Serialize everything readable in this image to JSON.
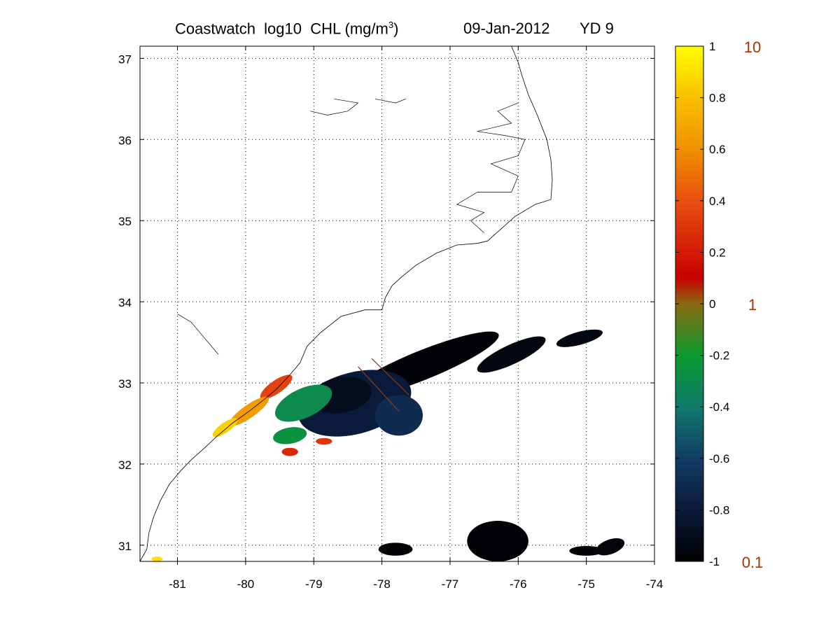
{
  "title": {
    "main": "Coastwatch  log10  CHL (mg/m",
    "superscript": "3",
    "close_paren": ")",
    "date": "09-Jan-2012",
    "yearday": "YD 9"
  },
  "chart_data": {
    "type": "heatmap",
    "title": "Coastwatch log10 CHL (mg/m3)  09-Jan-2012  YD 9",
    "xlim": [
      -81.55,
      -74
    ],
    "ylim": [
      30.8,
      37.15
    ],
    "x_ticks": [
      -81,
      -80,
      -79,
      -78,
      -77,
      -76,
      -75,
      -74
    ],
    "x_tick_labels": [
      "-81",
      "-80",
      "-79",
      "-78",
      "-77",
      "-76",
      "-75",
      "-74"
    ],
    "y_ticks": [
      31,
      32,
      33,
      34,
      35,
      36,
      37
    ],
    "y_tick_labels": [
      "31",
      "32",
      "33",
      "34",
      "35",
      "36",
      "37"
    ],
    "grid": true,
    "colorbar": {
      "clim": [
        -1,
        1
      ],
      "ticks": [
        1,
        0.8,
        0.6,
        0.4,
        0.2,
        0,
        -0.2,
        -0.4,
        -0.6,
        -0.8,
        -1
      ],
      "tick_labels": [
        "1",
        "0.8",
        "0.6",
        "0.4",
        "0.2",
        "0",
        "-0.2",
        "-0.4",
        "-0.6",
        "-0.8",
        "-1"
      ],
      "linear_labels": [
        {
          "value": 1,
          "label": "10"
        },
        {
          "value": 0,
          "label": "1"
        },
        {
          "value": -1,
          "label": "0.1"
        }
      ],
      "colormap": [
        {
          "v": -1.0,
          "color": "#000000"
        },
        {
          "v": -0.8,
          "color": "#0a1a3a"
        },
        {
          "v": -0.6,
          "color": "#123c66"
        },
        {
          "v": -0.4,
          "color": "#0f7a6a"
        },
        {
          "v": -0.2,
          "color": "#0a9a30"
        },
        {
          "v": 0.0,
          "color": "#8a6a10"
        },
        {
          "v": 0.1,
          "color": "#c80000"
        },
        {
          "v": 0.4,
          "color": "#e85010"
        },
        {
          "v": 0.6,
          "color": "#f09000"
        },
        {
          "v": 0.8,
          "color": "#f8c000"
        },
        {
          "v": 1.0,
          "color": "#ffff00"
        }
      ]
    },
    "chl_patches": [
      {
        "lon": -77.4,
        "lat": 33.22,
        "rx": 1.2,
        "ry": 0.18,
        "angle": 22,
        "value": -0.98
      },
      {
        "lon": -76.1,
        "lat": 33.35,
        "rx": 0.55,
        "ry": 0.12,
        "angle": 25,
        "value": -0.95
      },
      {
        "lon": -75.1,
        "lat": 33.55,
        "rx": 0.35,
        "ry": 0.08,
        "angle": 15,
        "value": -0.95
      },
      {
        "lon": -78.4,
        "lat": 32.75,
        "rx": 0.85,
        "ry": 0.38,
        "angle": 15,
        "value": -0.8
      },
      {
        "lon": -78.6,
        "lat": 32.85,
        "rx": 0.45,
        "ry": 0.22,
        "angle": 10,
        "value": -0.9
      },
      {
        "lon": -77.75,
        "lat": 32.6,
        "rx": 0.35,
        "ry": 0.25,
        "angle": 0,
        "value": -0.7
      },
      {
        "lon": -79.15,
        "lat": 32.75,
        "rx": 0.45,
        "ry": 0.18,
        "angle": 25,
        "value": -0.3
      },
      {
        "lon": -79.35,
        "lat": 32.35,
        "rx": 0.25,
        "ry": 0.1,
        "angle": 10,
        "value": -0.25
      },
      {
        "lon": -79.55,
        "lat": 32.95,
        "rx": 0.28,
        "ry": 0.08,
        "angle": 35,
        "value": 0.35
      },
      {
        "lon": -79.95,
        "lat": 32.65,
        "rx": 0.35,
        "ry": 0.08,
        "angle": 35,
        "value": 0.65
      },
      {
        "lon": -80.3,
        "lat": 32.45,
        "rx": 0.22,
        "ry": 0.06,
        "angle": 35,
        "value": 0.85
      },
      {
        "lon": -79.35,
        "lat": 32.15,
        "rx": 0.12,
        "ry": 0.05,
        "angle": 0,
        "value": 0.25
      },
      {
        "lon": -78.85,
        "lat": 32.28,
        "rx": 0.12,
        "ry": 0.04,
        "angle": 0,
        "value": 0.3
      },
      {
        "lon": -76.3,
        "lat": 31.05,
        "rx": 0.45,
        "ry": 0.25,
        "angle": 0,
        "value": -0.98
      },
      {
        "lon": -75.0,
        "lat": 30.93,
        "rx": 0.25,
        "ry": 0.06,
        "angle": 0,
        "value": -0.98
      },
      {
        "lon": -74.65,
        "lat": 30.98,
        "rx": 0.22,
        "ry": 0.09,
        "angle": 20,
        "value": -0.97
      },
      {
        "lon": -77.8,
        "lat": 30.95,
        "rx": 0.25,
        "ry": 0.08,
        "angle": 0,
        "value": -0.98
      },
      {
        "lon": -81.3,
        "lat": 30.83,
        "rx": 0.08,
        "ry": 0.03,
        "angle": 0,
        "value": 0.9
      }
    ],
    "coastline": [
      [
        -81.55,
        30.8
      ],
      [
        -81.45,
        30.95
      ],
      [
        -81.42,
        31.15
      ],
      [
        -81.35,
        31.35
      ],
      [
        -81.25,
        31.55
      ],
      [
        -81.12,
        31.75
      ],
      [
        -80.95,
        31.92
      ],
      [
        -80.8,
        32.05
      ],
      [
        -80.6,
        32.2
      ],
      [
        -80.45,
        32.32
      ],
      [
        -80.2,
        32.5
      ],
      [
        -79.95,
        32.65
      ],
      [
        -79.75,
        32.78
      ],
      [
        -79.55,
        32.92
      ],
      [
        -79.35,
        33.1
      ],
      [
        -79.2,
        33.25
      ],
      [
        -79.1,
        33.45
      ],
      [
        -78.9,
        33.62
      ],
      [
        -78.6,
        33.82
      ],
      [
        -78.25,
        33.9
      ],
      [
        -78.0,
        33.9
      ],
      [
        -77.95,
        34.05
      ],
      [
        -77.85,
        34.2
      ],
      [
        -77.72,
        34.3
      ],
      [
        -77.5,
        34.45
      ],
      [
        -77.2,
        34.6
      ],
      [
        -76.9,
        34.7
      ],
      [
        -76.6,
        34.72
      ],
      [
        -76.45,
        34.75
      ],
      [
        -76.25,
        34.9
      ],
      [
        -76.05,
        35.05
      ],
      [
        -75.75,
        35.2
      ],
      [
        -75.52,
        35.26
      ],
      [
        -75.5,
        35.5
      ],
      [
        -75.52,
        35.75
      ],
      [
        -75.58,
        36.0
      ],
      [
        -75.72,
        36.3
      ],
      [
        -75.85,
        36.55
      ],
      [
        -75.95,
        36.8
      ],
      [
        -76.0,
        36.95
      ],
      [
        -76.1,
        37.15
      ]
    ],
    "sound_shore": [
      [
        -76.5,
        34.85
      ],
      [
        -76.7,
        35.0
      ],
      [
        -76.5,
        35.1
      ],
      [
        -76.9,
        35.2
      ],
      [
        -76.6,
        35.35
      ],
      [
        -76.1,
        35.35
      ],
      [
        -76.0,
        35.55
      ],
      [
        -76.4,
        35.7
      ],
      [
        -76.0,
        35.8
      ],
      [
        -75.9,
        36.0
      ],
      [
        -76.2,
        36.05
      ],
      [
        -76.6,
        36.1
      ],
      [
        -76.1,
        36.2
      ],
      [
        -76.3,
        36.35
      ],
      [
        -76.0,
        36.45
      ]
    ],
    "inland_waters": [
      [
        [
          -79.05,
          36.35
        ],
        [
          -78.8,
          36.3
        ],
        [
          -78.5,
          36.35
        ],
        [
          -78.35,
          36.45
        ],
        [
          -78.7,
          36.5
        ]
      ],
      [
        [
          -78.1,
          36.5
        ],
        [
          -77.8,
          36.45
        ],
        [
          -77.65,
          36.5
        ]
      ],
      [
        [
          -81.0,
          33.85
        ],
        [
          -80.8,
          33.75
        ],
        [
          -80.6,
          33.55
        ],
        [
          -80.4,
          33.35
        ]
      ]
    ],
    "satellite_tracks": [
      {
        "lon": [
          -78.35,
          -77.75
        ],
        "lat": [
          33.2,
          32.65
        ]
      },
      {
        "lon": [
          -78.15,
          -77.6
        ],
        "lat": [
          33.3,
          32.85
        ]
      }
    ]
  }
}
